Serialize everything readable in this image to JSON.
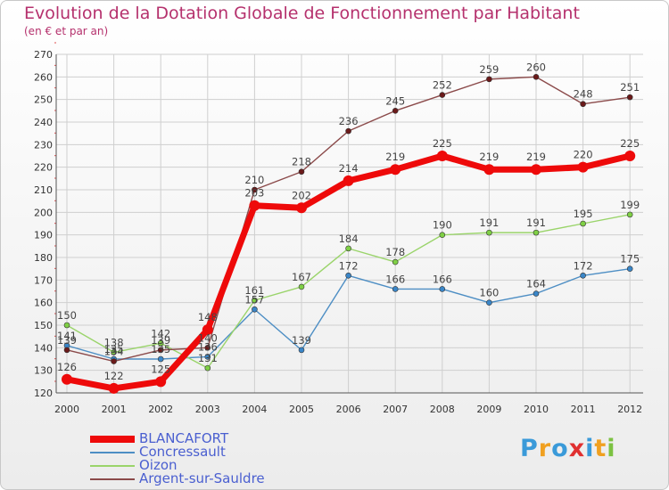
{
  "chart_data": {
    "type": "line",
    "title": "Evolution de la Dotation Globale de Fonctionnement par Habitant",
    "subtitle": "(en € et par an)",
    "xlabel": "",
    "ylabel": "",
    "ylim": [
      120,
      270
    ],
    "yticks": [
      120,
      130,
      140,
      150,
      160,
      170,
      180,
      190,
      200,
      210,
      220,
      230,
      240,
      250,
      260,
      270
    ],
    "categories": [
      "2000",
      "2001",
      "2002",
      "2003",
      "2004",
      "2005",
      "2006",
      "2007",
      "2008",
      "2009",
      "2010",
      "2011",
      "2012"
    ],
    "legend_position": "bottom-left",
    "series": [
      {
        "name": "Concressault",
        "color": "#4d8ec4",
        "marker": "#3a86c8",
        "values": [
          141,
          135,
          135,
          136,
          157,
          139,
          172,
          166,
          166,
          160,
          164,
          172,
          175
        ],
        "labels": [
          "141",
          "135",
          "135",
          "136",
          "157",
          "139",
          "172",
          "166",
          "166",
          "160",
          "164",
          "172",
          "175"
        ]
      },
      {
        "name": "Oizon",
        "color": "#9ad46a",
        "marker": "#7fd045",
        "values": [
          150,
          138,
          142,
          131,
          161,
          167,
          184,
          178,
          190,
          191,
          191,
          195,
          199
        ],
        "labels": [
          "150",
          "138",
          "142",
          "131",
          "161",
          "167",
          "184",
          "178",
          "190",
          "191",
          "191",
          "195",
          "199"
        ]
      },
      {
        "name": "Argent-sur-Sauldre",
        "color": "#8b4a4a",
        "marker": "#6b1a1a",
        "values": [
          139,
          134,
          139,
          140,
          210,
          218,
          236,
          245,
          252,
          259,
          260,
          248,
          251
        ],
        "labels": [
          "139",
          "134",
          "139",
          "140",
          "210",
          "218",
          "236",
          "245",
          "252",
          "259",
          "260",
          "248",
          "251"
        ]
      },
      {
        "name": "BLANCAFORT",
        "color": "#ee0a0a",
        "marker": "#ee0a0a",
        "values": [
          126,
          122,
          125,
          148,
          203,
          202,
          214,
          219,
          225,
          219,
          219,
          220,
          225
        ],
        "labels": [
          "126",
          "122",
          "125",
          "148",
          "203",
          "202",
          "214",
          "219",
          "225",
          "219",
          "219",
          "220",
          "225"
        ]
      }
    ]
  },
  "legend": {
    "items": [
      {
        "label": "BLANCAFORT",
        "color": "#ee0a0a",
        "text_color": "#4a5fd0"
      },
      {
        "label": "Concressault",
        "color": "#4d8ec4",
        "text_color": "#4a5fd0"
      },
      {
        "label": "Oizon",
        "color": "#9ad46a",
        "text_color": "#4a5fd0"
      },
      {
        "label": "Argent-sur-Sauldre",
        "color": "#8b4a4a",
        "text_color": "#4a5fd0"
      }
    ]
  },
  "logo": {
    "letters": [
      "P",
      "r",
      "o",
      "x",
      "i",
      "t",
      "i"
    ],
    "colors": [
      "#3a9ad9",
      "#f0a020",
      "#3a9ad9",
      "#e03030",
      "#3a9ad9",
      "#f0a020",
      "#7cc242"
    ]
  }
}
